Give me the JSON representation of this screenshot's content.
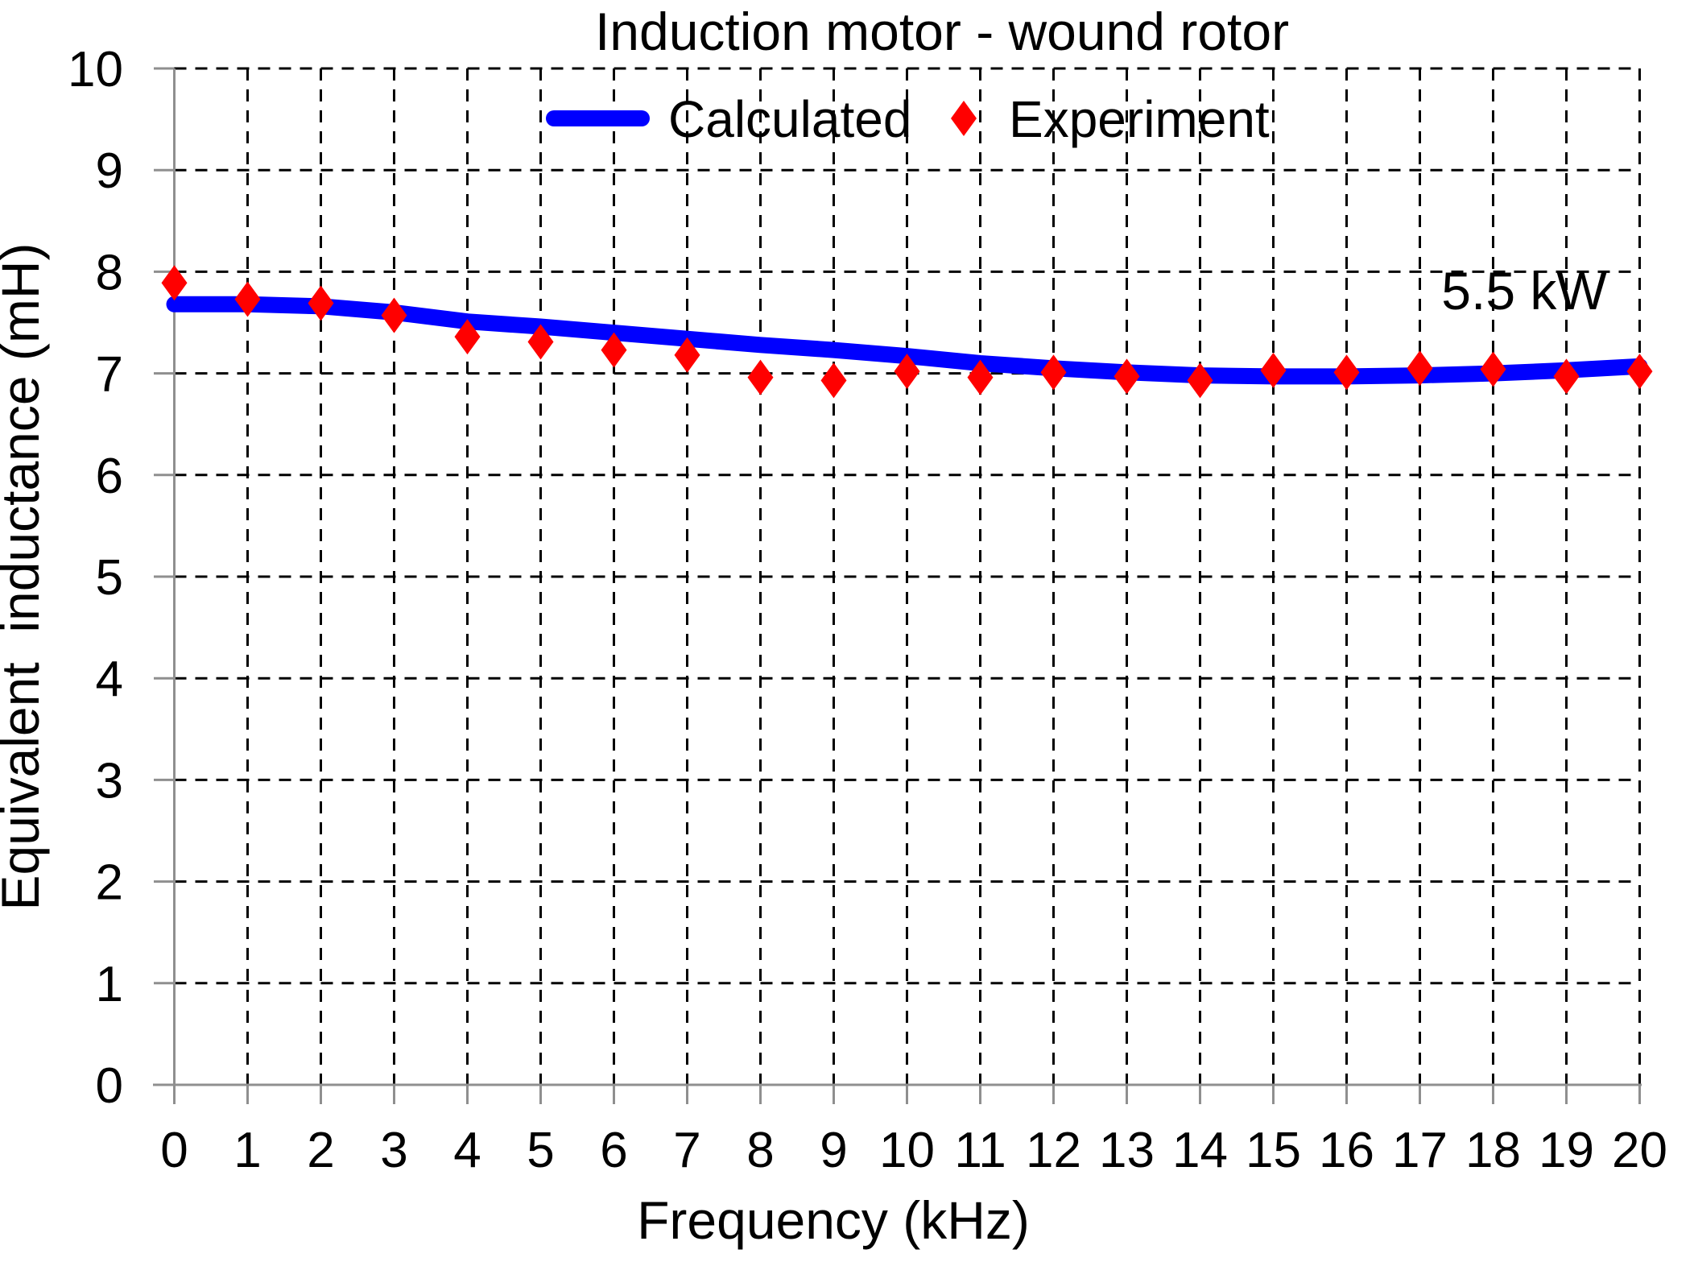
{
  "page": {
    "background": "#FFFFFF"
  },
  "chart_data": {
    "type": "line",
    "title": "Induction motor - wound rotor",
    "xlabel": "Frequency (kHz)",
    "ylabel": "Equivalent  inductance (mH)",
    "annotation": "5.5 kW",
    "xlim": [
      0,
      20
    ],
    "ylim": [
      0,
      10
    ],
    "xticks": [
      0,
      1,
      2,
      3,
      4,
      5,
      6,
      7,
      8,
      9,
      10,
      11,
      12,
      13,
      14,
      15,
      16,
      17,
      18,
      19,
      20
    ],
    "yticks": [
      0,
      1,
      2,
      3,
      4,
      5,
      6,
      7,
      8,
      9,
      10
    ],
    "grid": "dashed-black",
    "axis_color": "#8F8F8F",
    "grid_color": "#000000",
    "legend_position": "top-center",
    "x": [
      0,
      1,
      2,
      3,
      4,
      5,
      6,
      7,
      8,
      9,
      10,
      11,
      12,
      13,
      14,
      15,
      16,
      17,
      18,
      19,
      20
    ],
    "series": [
      {
        "name": "Calculated",
        "kind": "line",
        "color": "#0000FF",
        "values": [
          7.68,
          7.68,
          7.66,
          7.6,
          7.51,
          7.46,
          7.4,
          7.34,
          7.28,
          7.23,
          7.17,
          7.1,
          7.05,
          7.01,
          6.98,
          6.97,
          6.97,
          6.98,
          7.0,
          7.03,
          7.07
        ]
      },
      {
        "name": "Experiment",
        "kind": "scatter",
        "marker": "diamond",
        "color": "#FF0000",
        "values": [
          7.89,
          7.73,
          7.69,
          7.57,
          7.36,
          7.31,
          7.23,
          7.18,
          6.96,
          6.93,
          7.02,
          6.96,
          7.01,
          6.97,
          6.93,
          7.03,
          7.01,
          7.05,
          7.04,
          6.97,
          7.02
        ]
      }
    ]
  }
}
